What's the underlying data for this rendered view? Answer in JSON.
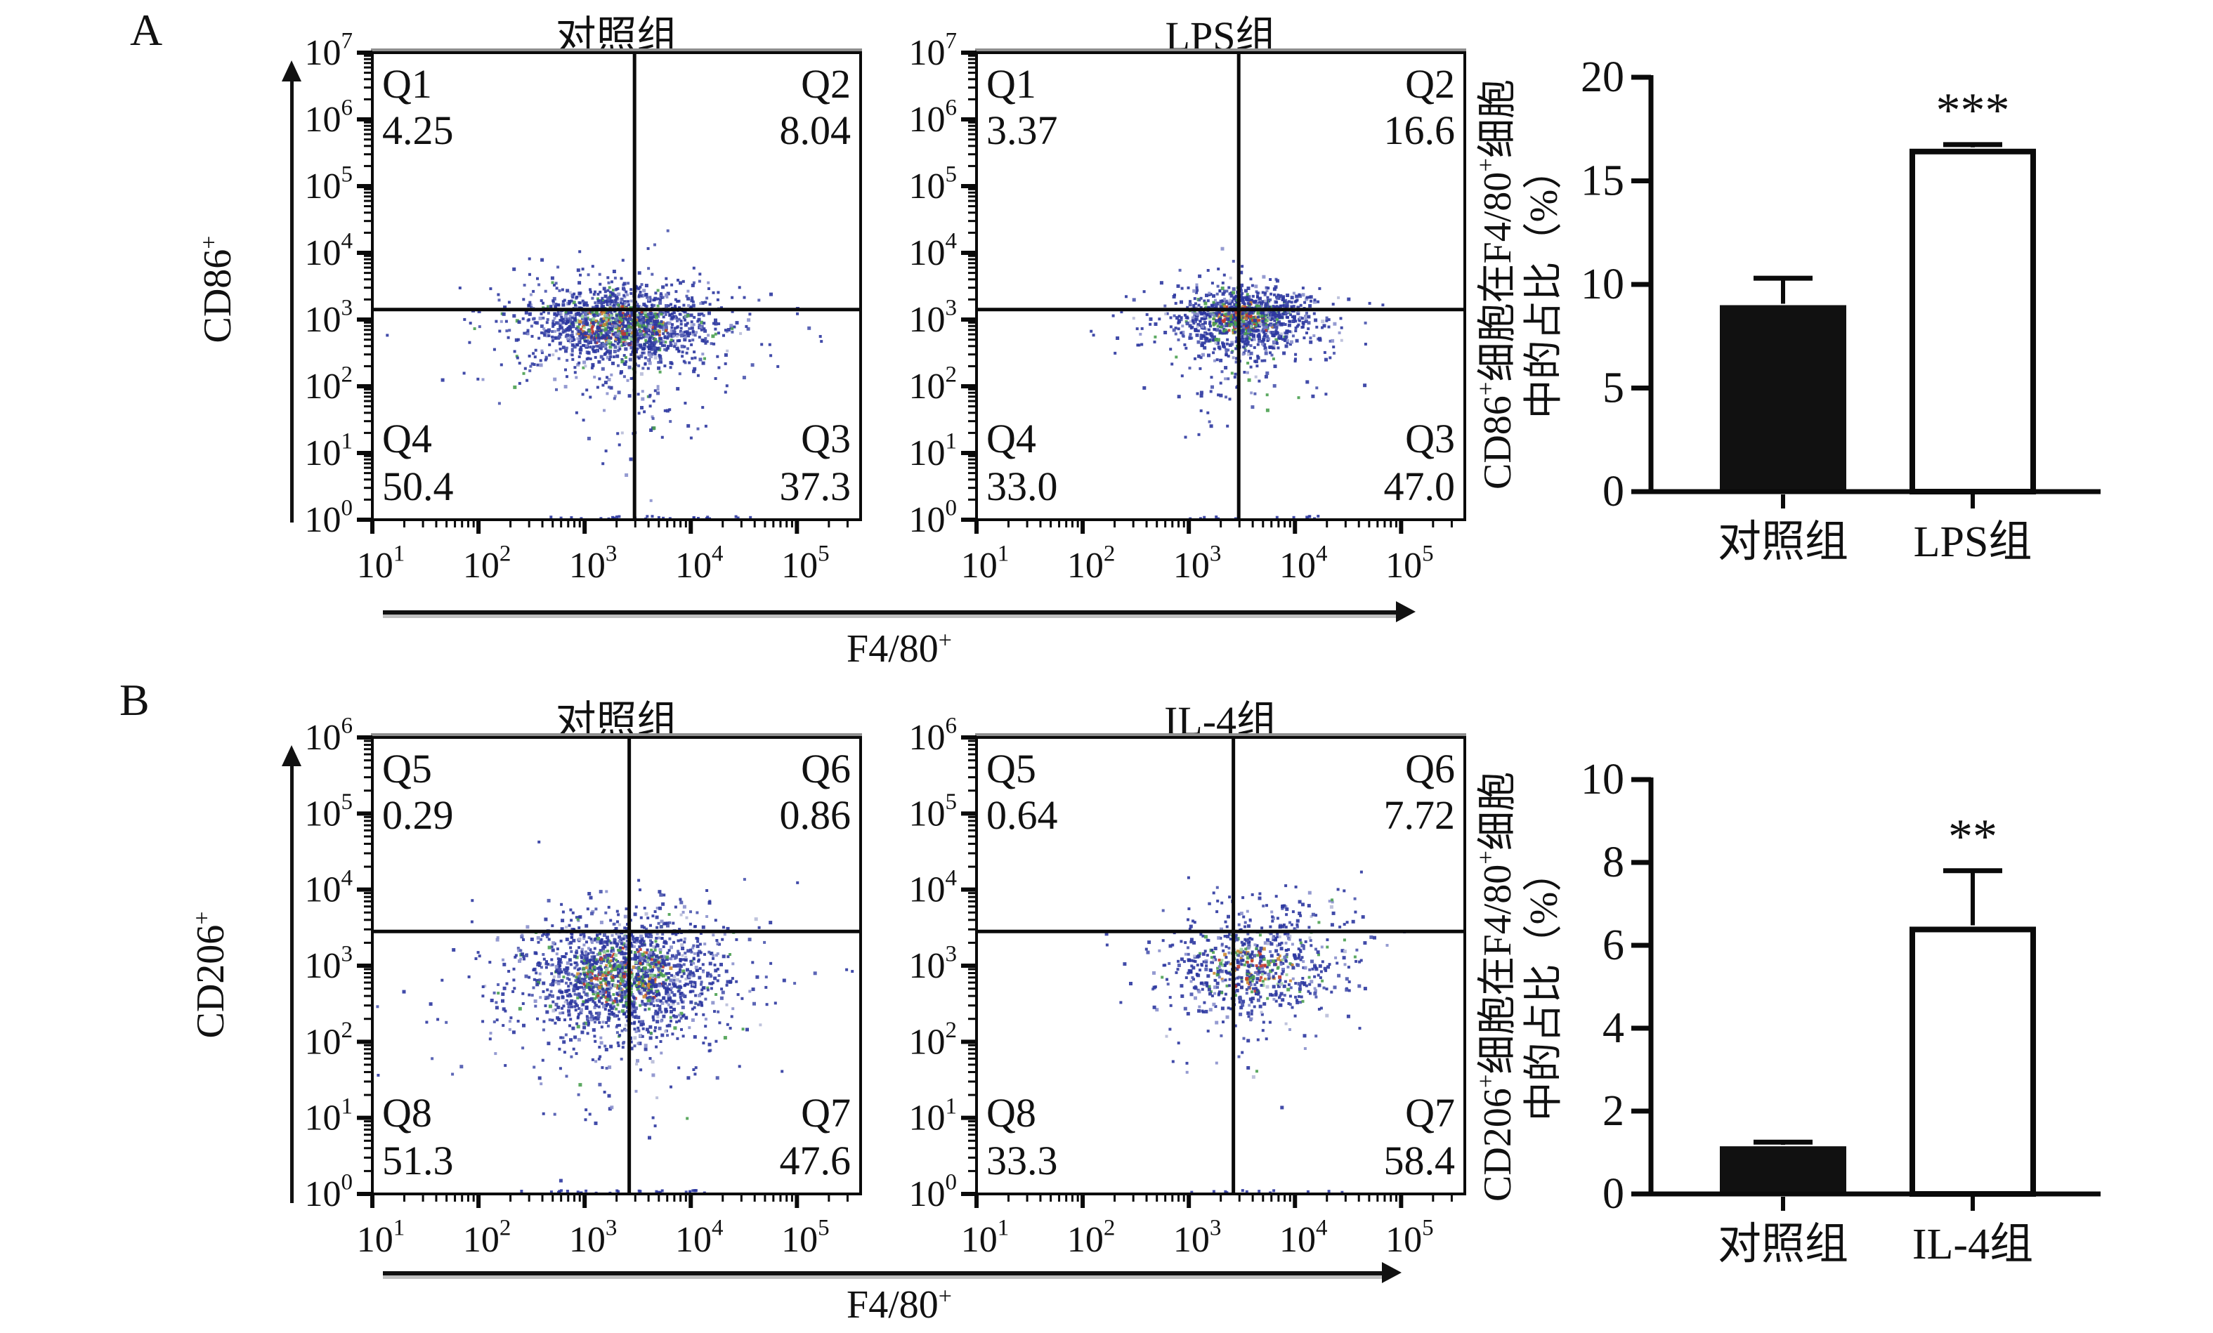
{
  "panels": [
    {
      "letter": "A",
      "y_axis_label": "CD86^+",
      "x_axis_label": "F4/80^+"
    },
    {
      "letter": "B",
      "y_axis_label": "CD206^+",
      "x_axis_label": "F4/80^+"
    }
  ],
  "colors": {
    "text": "#111111",
    "frame": "#0a0a0a",
    "frame_top_edge": "#8f8f8f",
    "point_navy": "#2c37a0",
    "point_green": "#4aa050",
    "point_red": "#c23a30",
    "point_orange": "#cc8833",
    "bar_solid": "#111111",
    "bar_open_fill": "#ffffff"
  },
  "chart_data": [
    {
      "id": "flow-a-control",
      "type": "scatter",
      "panel": "A",
      "title": "对照组",
      "xlabel": "F4/80^+",
      "ylabel": "CD86^+",
      "x_log_range": [
        1,
        5.6
      ],
      "y_log_range": [
        0,
        7
      ],
      "x_tick_exponents": [
        1,
        2,
        3,
        4,
        5
      ],
      "y_tick_exponents": [
        0,
        1,
        2,
        3,
        4,
        5,
        6,
        7
      ],
      "gate_x_log": 3.47,
      "gate_y_log": 3.15,
      "quadrants": [
        {
          "label": "Q1",
          "percent": "4.25",
          "position": "top-left"
        },
        {
          "label": "Q2",
          "percent": "8.04",
          "position": "top-right"
        },
        {
          "label": "Q3",
          "percent": "37.3",
          "position": "bottom-right"
        },
        {
          "label": "Q4",
          "percent": "50.4",
          "position": "bottom-left"
        }
      ],
      "cloud_model": [
        {
          "n": 1250,
          "cx": 3.35,
          "cy": 2.9,
          "sx": 0.4,
          "sy": 0.28,
          "core": true,
          "seed": 101
        },
        {
          "n": 300,
          "cx": 3.32,
          "cy": 2.75,
          "sx": 0.7,
          "sy": 0.5,
          "core": false,
          "seed": 102
        },
        {
          "n": 50,
          "cx": 3.55,
          "cy": 1.9,
          "sx": 0.3,
          "sy": 0.6,
          "core": false,
          "seed": 103
        },
        {
          "n": 25,
          "cx": 2.35,
          "cy": 2.8,
          "sx": 0.4,
          "sy": 0.4,
          "core": false,
          "seed": 104
        }
      ],
      "floor_points": {
        "n": 26,
        "x_min": 2.6,
        "x_max": 4.6,
        "seed": 105
      }
    },
    {
      "id": "flow-a-lps",
      "type": "scatter",
      "panel": "A",
      "title": "LPS组",
      "xlabel": "F4/80^+",
      "ylabel": "CD86^+",
      "x_log_range": [
        1,
        5.6
      ],
      "y_log_range": [
        0,
        7
      ],
      "x_tick_exponents": [
        1,
        2,
        3,
        4,
        5
      ],
      "y_tick_exponents": [
        0,
        1,
        2,
        3,
        4,
        5,
        6,
        7
      ],
      "gate_x_log": 3.47,
      "gate_y_log": 3.15,
      "quadrants": [
        {
          "label": "Q1",
          "percent": "3.37",
          "position": "top-left"
        },
        {
          "label": "Q2",
          "percent": "16.6",
          "position": "top-right"
        },
        {
          "label": "Q3",
          "percent": "47.0",
          "position": "bottom-right"
        },
        {
          "label": "Q4",
          "percent": "33.0",
          "position": "bottom-left"
        }
      ],
      "cloud_model": [
        {
          "n": 900,
          "cx": 3.52,
          "cy": 3.02,
          "sx": 0.3,
          "sy": 0.22,
          "core": true,
          "seed": 201
        },
        {
          "n": 260,
          "cx": 3.48,
          "cy": 2.85,
          "sx": 0.5,
          "sy": 0.42,
          "core": false,
          "seed": 202
        },
        {
          "n": 40,
          "cx": 3.45,
          "cy": 2.1,
          "sx": 0.25,
          "sy": 0.45,
          "core": false,
          "seed": 203
        },
        {
          "n": 10,
          "cx": 2.55,
          "cy": 2.95,
          "sx": 0.3,
          "sy": 0.25,
          "core": false,
          "seed": 204
        }
      ],
      "floor_points": {
        "n": 14,
        "x_min": 3.0,
        "x_max": 4.4,
        "seed": 205
      }
    },
    {
      "id": "flow-b-control",
      "type": "scatter",
      "panel": "B",
      "title": "对照组",
      "xlabel": "F4/80^+",
      "ylabel": "CD206^+",
      "x_log_range": [
        1,
        5.6
      ],
      "y_log_range": [
        0,
        6
      ],
      "x_tick_exponents": [
        1,
        2,
        3,
        4,
        5
      ],
      "y_tick_exponents": [
        0,
        1,
        2,
        3,
        4,
        5,
        6
      ],
      "gate_x_log": 3.42,
      "gate_y_log": 3.45,
      "quadrants": [
        {
          "label": "Q5",
          "percent": "0.29",
          "position": "top-left"
        },
        {
          "label": "Q6",
          "percent": "0.86",
          "position": "top-right"
        },
        {
          "label": "Q7",
          "percent": "47.6",
          "position": "bottom-right"
        },
        {
          "label": "Q8",
          "percent": "51.3",
          "position": "bottom-left"
        }
      ],
      "cloud_model": [
        {
          "n": 1400,
          "cx": 3.38,
          "cy": 2.85,
          "sx": 0.42,
          "sy": 0.35,
          "core": true,
          "seed": 301
        },
        {
          "n": 350,
          "cx": 3.3,
          "cy": 2.6,
          "sx": 0.75,
          "sy": 0.55,
          "core": false,
          "seed": 302
        },
        {
          "n": 70,
          "cx": 3.7,
          "cy": 3.55,
          "sx": 0.35,
          "sy": 0.22,
          "core": false,
          "seed": 303
        },
        {
          "n": 40,
          "cx": 3.1,
          "cy": 1.6,
          "sx": 0.45,
          "sy": 0.5,
          "core": false,
          "seed": 304
        }
      ],
      "floor_points": {
        "n": 30,
        "x_min": 2.4,
        "x_max": 4.4,
        "seed": 305
      }
    },
    {
      "id": "flow-b-il4",
      "type": "scatter",
      "panel": "B",
      "title": "IL-4组",
      "xlabel": "F4/80^+",
      "ylabel": "CD206^+",
      "x_log_range": [
        1,
        5.6
      ],
      "y_log_range": [
        0,
        6
      ],
      "x_tick_exponents": [
        1,
        2,
        3,
        4,
        5
      ],
      "y_tick_exponents": [
        0,
        1,
        2,
        3,
        4,
        5,
        6
      ],
      "gate_x_log": 3.42,
      "gate_y_log": 3.45,
      "quadrants": [
        {
          "label": "Q5",
          "percent": "0.64",
          "position": "top-left"
        },
        {
          "label": "Q6",
          "percent": "7.72",
          "position": "top-right"
        },
        {
          "label": "Q7",
          "percent": "58.4",
          "position": "bottom-right"
        },
        {
          "label": "Q8",
          "percent": "33.3",
          "position": "bottom-left"
        }
      ],
      "cloud_model": [
        {
          "n": 520,
          "cx": 3.62,
          "cy": 2.95,
          "sx": 0.36,
          "sy": 0.28,
          "core": true,
          "seed": 401
        },
        {
          "n": 140,
          "cx": 3.6,
          "cy": 2.75,
          "sx": 0.55,
          "sy": 0.5,
          "core": false,
          "seed": 402
        },
        {
          "n": 90,
          "cx": 3.85,
          "cy": 3.6,
          "sx": 0.45,
          "sy": 0.25,
          "core": false,
          "seed": 403
        },
        {
          "n": 12,
          "cx": 2.8,
          "cy": 3.0,
          "sx": 0.4,
          "sy": 0.4,
          "core": false,
          "seed": 404
        }
      ],
      "floor_points": {
        "n": 12,
        "x_min": 2.8,
        "x_max": 4.6,
        "seed": 405
      }
    },
    {
      "id": "bar-a",
      "type": "bar",
      "panel": "A",
      "ylabel_lines": [
        "CD86^+细胞在F4/80^+细胞",
        "中的占比（%）"
      ],
      "ylim": [
        0,
        20
      ],
      "yticks": [
        0,
        5,
        10,
        15,
        20
      ],
      "categories": [
        "对照组",
        "LPS组"
      ],
      "values": [
        9.0,
        16.55
      ],
      "errors_plus": [
        1.3,
        0.2
      ],
      "bar_styles": [
        "solid-black",
        "open-white"
      ],
      "significance": [
        "",
        "***"
      ]
    },
    {
      "id": "bar-b",
      "type": "bar",
      "panel": "B",
      "ylabel_lines": [
        "CD206^+细胞在F4/80^+细胞",
        "中的占比（%）"
      ],
      "ylim": [
        0,
        10
      ],
      "yticks": [
        0,
        2,
        4,
        6,
        8,
        10
      ],
      "categories": [
        "对照组",
        "IL-4组"
      ],
      "values": [
        1.15,
        6.45
      ],
      "errors_plus": [
        0.1,
        1.35
      ],
      "bar_styles": [
        "solid-black",
        "open-white"
      ],
      "significance": [
        "",
        "**"
      ]
    }
  ]
}
